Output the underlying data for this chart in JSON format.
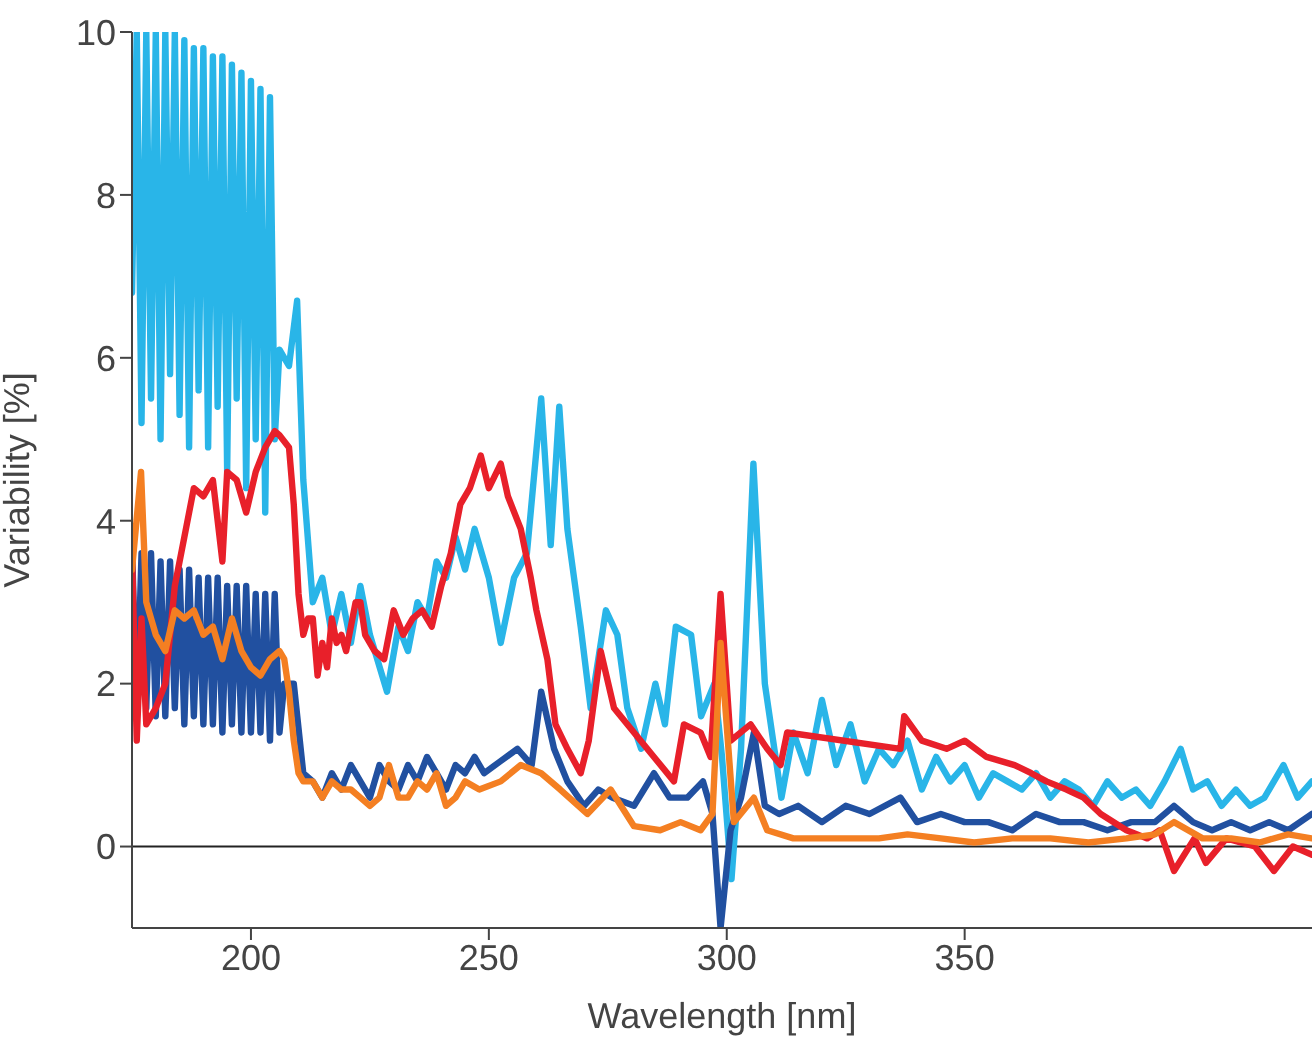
{
  "chart_data": {
    "type": "line",
    "xlabel": "Wavelength [nm]",
    "ylabel": "Variability [%]",
    "xlim": [
      175,
      423
    ],
    "xticks": [
      200,
      250,
      300,
      350
    ],
    "ylim": [
      -1,
      10
    ],
    "yticks": [
      0,
      2,
      4,
      6,
      8,
      10
    ],
    "grid": false,
    "marker": "none",
    "line_style": "solid",
    "ref_lines": [
      {
        "axis": "y",
        "value": 0,
        "color": "#222222"
      }
    ],
    "series": [
      {
        "color": "#29b5e8",
        "x": [
          175,
          176,
          177,
          178,
          179,
          180,
          181,
          182,
          183,
          184,
          185,
          186,
          187,
          188,
          189,
          190,
          191,
          192,
          193,
          194,
          195,
          196,
          197,
          198,
          199,
          200,
          201,
          202,
          203,
          204,
          205,
          206,
          207,
          208,
          209.7,
          211,
          213,
          215,
          217,
          219,
          221,
          223,
          225,
          228.6,
          231,
          233,
          235,
          237,
          239,
          241,
          243,
          245,
          247,
          250,
          252.5,
          255.3,
          258,
          261,
          263,
          264.8,
          266.5,
          269.3,
          271.4,
          274.6,
          277,
          279.1,
          282,
          285,
          287,
          289.3,
          292.5,
          294.6,
          297.4,
          299,
          301,
          303,
          305.6,
          308,
          311.5,
          314,
          317,
          320,
          323,
          326,
          329,
          332,
          335,
          338,
          341,
          344,
          347,
          350,
          353,
          356,
          359,
          362,
          365,
          368,
          371,
          374,
          377,
          380,
          383,
          386,
          389,
          392,
          395.4,
          398,
          401,
          404,
          407,
          410,
          413,
          417,
          420,
          423
        ],
        "values": [
          6.8,
          10,
          5.2,
          10,
          5.5,
          10,
          5.0,
          10,
          5.8,
          10,
          5.3,
          9.9,
          4.9,
          9.8,
          5.6,
          9.8,
          4.9,
          9.7,
          5.4,
          9.7,
          4.6,
          9.6,
          5.5,
          9.5,
          4.4,
          9.4,
          5.0,
          9.3,
          4.1,
          9.2,
          5.0,
          6.1,
          6.0,
          5.9,
          6.7,
          4.5,
          3.0,
          3.3,
          2.6,
          3.1,
          2.5,
          3.2,
          2.6,
          1.9,
          2.7,
          2.4,
          3.0,
          2.8,
          3.5,
          3.3,
          3.8,
          3.4,
          3.9,
          3.3,
          2.5,
          3.3,
          3.6,
          5.5,
          3.7,
          5.4,
          3.9,
          2.7,
          1.7,
          2.9,
          2.6,
          1.7,
          1.2,
          2.0,
          1.5,
          2.7,
          2.6,
          1.6,
          2.0,
          1.1,
          -0.4,
          1.2,
          4.7,
          2.0,
          0.6,
          1.4,
          0.9,
          1.8,
          1.0,
          1.5,
          0.8,
          1.2,
          1.0,
          1.3,
          0.7,
          1.1,
          0.8,
          1.0,
          0.6,
          0.9,
          0.8,
          0.7,
          0.9,
          0.6,
          0.8,
          0.7,
          0.5,
          0.8,
          0.6,
          0.7,
          0.5,
          0.8,
          1.2,
          0.7,
          0.8,
          0.5,
          0.7,
          0.5,
          0.6,
          1.0,
          0.6,
          0.8
        ]
      },
      {
        "color": "#2150a0",
        "x": [
          175,
          176,
          177,
          178,
          179,
          180,
          181,
          182,
          183,
          184,
          185,
          186,
          187,
          188,
          189,
          190,
          191,
          192,
          193,
          194,
          195,
          196,
          197,
          198,
          199,
          200,
          201,
          202,
          203,
          204,
          205,
          206,
          207,
          209,
          211,
          213,
          215,
          217,
          219,
          221,
          223,
          225,
          227,
          229,
          231,
          233,
          235,
          237,
          239,
          241,
          243,
          245,
          247,
          249,
          252.5,
          256,
          259,
          261,
          263.7,
          266.5,
          270,
          273,
          276,
          280.5,
          284.7,
          288,
          291.7,
          295,
          297,
          298.7,
          300.8,
          303,
          305.7,
          308,
          311,
          315,
          320,
          325,
          330,
          336.5,
          340,
          345,
          350,
          355,
          360,
          365,
          370,
          375,
          380,
          385,
          390,
          394,
          398,
          402,
          406,
          410,
          414,
          418,
          423
        ],
        "values": [
          3.7,
          1.6,
          3.6,
          1.7,
          3.6,
          1.6,
          3.5,
          1.6,
          3.5,
          1.7,
          3.4,
          1.5,
          3.4,
          1.6,
          3.3,
          1.5,
          3.3,
          1.5,
          3.3,
          1.4,
          3.2,
          1.5,
          3.2,
          1.4,
          3.2,
          1.4,
          3.1,
          1.4,
          3.1,
          1.3,
          3.1,
          1.4,
          2.0,
          2.0,
          0.9,
          0.8,
          0.6,
          0.9,
          0.7,
          1.0,
          0.8,
          0.6,
          1.0,
          0.8,
          0.7,
          1.0,
          0.8,
          1.1,
          0.9,
          0.7,
          1.0,
          0.9,
          1.1,
          0.9,
          1.05,
          1.2,
          1.0,
          1.9,
          1.2,
          0.8,
          0.5,
          0.7,
          0.6,
          0.5,
          0.9,
          0.6,
          0.6,
          0.8,
          0.4,
          -1.0,
          0.2,
          0.6,
          1.4,
          0.5,
          0.4,
          0.5,
          0.3,
          0.5,
          0.4,
          0.6,
          0.3,
          0.4,
          0.3,
          0.3,
          0.2,
          0.4,
          0.3,
          0.3,
          0.2,
          0.3,
          0.3,
          0.5,
          0.3,
          0.2,
          0.3,
          0.2,
          0.3,
          0.2,
          0.4
        ]
      },
      {
        "color": "#e8202a",
        "x": [
          175,
          176,
          177,
          178,
          180,
          182,
          184,
          186,
          188,
          190,
          192,
          194,
          195,
          197,
          199,
          201,
          203,
          205,
          206,
          208,
          209,
          210,
          211,
          212,
          213,
          214,
          215,
          216,
          217,
          218,
          219,
          220,
          222,
          223,
          224,
          226,
          228,
          230,
          232,
          234,
          236,
          238,
          240,
          242,
          244,
          246,
          248.3,
          250,
          252.5,
          254,
          256.7,
          258.8,
          260,
          262.3,
          264,
          266.5,
          269.3,
          271,
          273.5,
          276.3,
          280.5,
          284.7,
          288.9,
          291,
          294.5,
          296.6,
          298.7,
          300.8,
          305,
          308.5,
          311.3,
          312.7,
          336.5,
          337.3,
          341,
          346.2,
          350,
          354.6,
          360.5,
          364,
          367.2,
          371.4,
          375,
          378.6,
          384,
          388.4,
          391,
          394,
          398.3,
          400.7,
          405,
          411,
          415,
          419,
          423
        ],
        "values": [
          3.6,
          1.3,
          2.8,
          1.5,
          1.7,
          2.0,
          3.2,
          3.8,
          4.4,
          4.3,
          4.5,
          3.5,
          4.6,
          4.5,
          4.1,
          4.6,
          4.9,
          5.1,
          5.05,
          4.9,
          4.2,
          3.1,
          2.6,
          2.8,
          2.8,
          2.1,
          2.5,
          2.2,
          2.8,
          2.5,
          2.6,
          2.4,
          3.0,
          3.0,
          2.6,
          2.4,
          2.3,
          2.9,
          2.6,
          2.8,
          2.9,
          2.7,
          3.2,
          3.6,
          4.2,
          4.4,
          4.8,
          4.4,
          4.7,
          4.3,
          3.9,
          3.3,
          2.9,
          2.3,
          1.5,
          1.2,
          0.9,
          1.3,
          2.4,
          1.7,
          1.4,
          1.1,
          0.8,
          1.5,
          1.4,
          1.1,
          3.1,
          1.3,
          1.5,
          1.2,
          1.0,
          1.4,
          1.2,
          1.6,
          1.3,
          1.2,
          1.3,
          1.1,
          1.0,
          0.9,
          0.8,
          0.7,
          0.6,
          0.4,
          0.2,
          0.1,
          0.2,
          -0.3,
          0.1,
          -0.2,
          0.1,
          0.0,
          -0.3,
          0.0,
          -0.1
        ]
      },
      {
        "color": "#f47f22",
        "x": [
          175,
          176.9,
          178,
          180,
          182,
          184,
          186,
          188,
          190,
          192,
          194,
          196,
          198,
          200,
          202,
          204,
          206,
          207,
          208,
          209,
          210,
          211,
          213,
          215,
          217,
          219,
          221,
          223,
          225,
          227,
          229,
          231,
          233,
          235,
          237,
          239,
          241,
          243,
          245,
          248,
          252.5,
          256.7,
          261,
          265,
          270.7,
          275.6,
          280.5,
          286,
          290.3,
          294.5,
          297,
          298.7,
          301.5,
          305.7,
          308.5,
          314,
          320,
          326,
          332,
          338,
          345,
          352,
          360,
          368,
          376,
          384,
          390,
          394,
          400,
          406,
          412,
          418,
          423
        ],
        "values": [
          3.4,
          4.6,
          3.0,
          2.6,
          2.4,
          2.9,
          2.8,
          2.9,
          2.6,
          2.7,
          2.3,
          2.8,
          2.4,
          2.2,
          2.1,
          2.3,
          2.4,
          2.3,
          1.9,
          1.3,
          0.9,
          0.8,
          0.8,
          0.6,
          0.8,
          0.7,
          0.7,
          0.6,
          0.5,
          0.6,
          1.0,
          0.6,
          0.6,
          0.8,
          0.7,
          0.9,
          0.5,
          0.6,
          0.8,
          0.7,
          0.8,
          1.0,
          0.9,
          0.7,
          0.4,
          0.7,
          0.25,
          0.2,
          0.3,
          0.2,
          0.4,
          2.5,
          0.3,
          0.6,
          0.2,
          0.1,
          0.1,
          0.1,
          0.1,
          0.15,
          0.1,
          0.05,
          0.1,
          0.1,
          0.05,
          0.1,
          0.15,
          0.3,
          0.1,
          0.1,
          0.05,
          0.15,
          0.1
        ]
      }
    ]
  }
}
